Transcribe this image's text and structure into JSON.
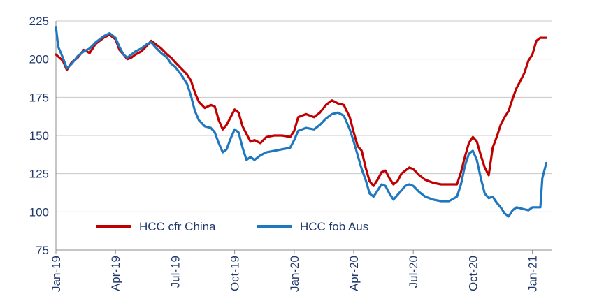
{
  "chart_data": {
    "type": "line",
    "title": "",
    "xlabel": "",
    "ylabel": "",
    "ylim": [
      75,
      225
    ],
    "yticks": [
      75,
      100,
      125,
      150,
      175,
      200,
      225
    ],
    "xticks": [
      "Jan-19",
      "Apr-19",
      "Jul-19",
      "Oct-19",
      "Jan-20",
      "Apr-20",
      "Jul-20",
      "Oct-20",
      "Jan-21"
    ],
    "x_range_months": [
      0,
      25
    ],
    "grid": "horizontal",
    "legend": "bottom-left",
    "series": [
      {
        "name": "HCC cfr China",
        "color": "#c00000",
        "points": [
          [
            0.0,
            203
          ],
          [
            0.35,
            199
          ],
          [
            0.55,
            193
          ],
          [
            0.8,
            198
          ],
          [
            1.1,
            201
          ],
          [
            1.4,
            206
          ],
          [
            1.7,
            204
          ],
          [
            2.0,
            210
          ],
          [
            2.4,
            214
          ],
          [
            2.7,
            216
          ],
          [
            3.0,
            213
          ],
          [
            3.2,
            206
          ],
          [
            3.4,
            203
          ],
          [
            3.6,
            200
          ],
          [
            3.8,
            201
          ],
          [
            4.0,
            203
          ],
          [
            4.3,
            205
          ],
          [
            4.6,
            209
          ],
          [
            4.8,
            212
          ],
          [
            5.0,
            210
          ],
          [
            5.3,
            207
          ],
          [
            5.6,
            203
          ],
          [
            5.8,
            201
          ],
          [
            6.0,
            198
          ],
          [
            6.3,
            194
          ],
          [
            6.6,
            190
          ],
          [
            6.8,
            186
          ],
          [
            7.0,
            178
          ],
          [
            7.2,
            172
          ],
          [
            7.5,
            168
          ],
          [
            7.8,
            170
          ],
          [
            8.0,
            169
          ],
          [
            8.2,
            160
          ],
          [
            8.4,
            154
          ],
          [
            8.6,
            157
          ],
          [
            8.8,
            162
          ],
          [
            9.0,
            167
          ],
          [
            9.2,
            165
          ],
          [
            9.4,
            156
          ],
          [
            9.6,
            151
          ],
          [
            9.8,
            146
          ],
          [
            10.0,
            147
          ],
          [
            10.3,
            145
          ],
          [
            10.6,
            149
          ],
          [
            11.0,
            150
          ],
          [
            11.4,
            150
          ],
          [
            11.8,
            149
          ],
          [
            12.0,
            153
          ],
          [
            12.2,
            162
          ],
          [
            12.6,
            164
          ],
          [
            13.0,
            162
          ],
          [
            13.3,
            165
          ],
          [
            13.6,
            170
          ],
          [
            13.9,
            173
          ],
          [
            14.2,
            171
          ],
          [
            14.5,
            170
          ],
          [
            14.8,
            162
          ],
          [
            15.0,
            152
          ],
          [
            15.2,
            143
          ],
          [
            15.4,
            140
          ],
          [
            15.6,
            129
          ],
          [
            15.8,
            120
          ],
          [
            16.0,
            117
          ],
          [
            16.2,
            121
          ],
          [
            16.4,
            126
          ],
          [
            16.6,
            127
          ],
          [
            16.8,
            122
          ],
          [
            17.0,
            118
          ],
          [
            17.2,
            120
          ],
          [
            17.4,
            125
          ],
          [
            17.6,
            127
          ],
          [
            17.8,
            129
          ],
          [
            18.0,
            128
          ],
          [
            18.3,
            124
          ],
          [
            18.6,
            121
          ],
          [
            19.0,
            119
          ],
          [
            19.4,
            118
          ],
          [
            19.8,
            118
          ],
          [
            20.2,
            118
          ],
          [
            20.4,
            126
          ],
          [
            20.6,
            136
          ],
          [
            20.8,
            145
          ],
          [
            21.0,
            149
          ],
          [
            21.2,
            146
          ],
          [
            21.4,
            137
          ],
          [
            21.6,
            129
          ],
          [
            21.8,
            124
          ],
          [
            22.0,
            142
          ],
          [
            22.2,
            149
          ],
          [
            22.4,
            157
          ],
          [
            22.6,
            162
          ],
          [
            22.8,
            166
          ],
          [
            23.0,
            174
          ],
          [
            23.2,
            181
          ],
          [
            23.4,
            186
          ],
          [
            23.6,
            191
          ],
          [
            23.8,
            199
          ],
          [
            24.0,
            203
          ],
          [
            24.2,
            212
          ],
          [
            24.4,
            214
          ],
          [
            24.7,
            214
          ]
        ]
      },
      {
        "name": "HCC fob Aus",
        "color": "#1f77c0",
        "points": [
          [
            0.0,
            221
          ],
          [
            0.12,
            208
          ],
          [
            0.35,
            201
          ],
          [
            0.55,
            194
          ],
          [
            0.8,
            197
          ],
          [
            1.1,
            202
          ],
          [
            1.4,
            205
          ],
          [
            1.7,
            207
          ],
          [
            2.0,
            211
          ],
          [
            2.4,
            215
          ],
          [
            2.7,
            217
          ],
          [
            3.0,
            214
          ],
          [
            3.2,
            208
          ],
          [
            3.4,
            203
          ],
          [
            3.6,
            201
          ],
          [
            3.8,
            203
          ],
          [
            4.0,
            205
          ],
          [
            4.3,
            207
          ],
          [
            4.6,
            210
          ],
          [
            4.8,
            211
          ],
          [
            5.0,
            208
          ],
          [
            5.3,
            204
          ],
          [
            5.6,
            201
          ],
          [
            5.8,
            197
          ],
          [
            6.0,
            195
          ],
          [
            6.3,
            190
          ],
          [
            6.6,
            184
          ],
          [
            6.8,
            176
          ],
          [
            7.0,
            166
          ],
          [
            7.2,
            160
          ],
          [
            7.5,
            156
          ],
          [
            7.8,
            155
          ],
          [
            8.0,
            152
          ],
          [
            8.2,
            145
          ],
          [
            8.4,
            139
          ],
          [
            8.6,
            141
          ],
          [
            8.8,
            148
          ],
          [
            9.0,
            154
          ],
          [
            9.2,
            152
          ],
          [
            9.4,
            142
          ],
          [
            9.6,
            134
          ],
          [
            9.8,
            136
          ],
          [
            10.0,
            134
          ],
          [
            10.3,
            137
          ],
          [
            10.6,
            139
          ],
          [
            11.0,
            140
          ],
          [
            11.4,
            141
          ],
          [
            11.8,
            142
          ],
          [
            12.0,
            147
          ],
          [
            12.2,
            153
          ],
          [
            12.6,
            155
          ],
          [
            13.0,
            154
          ],
          [
            13.3,
            157
          ],
          [
            13.6,
            161
          ],
          [
            13.9,
            164
          ],
          [
            14.2,
            165
          ],
          [
            14.5,
            163
          ],
          [
            14.8,
            154
          ],
          [
            15.0,
            146
          ],
          [
            15.2,
            137
          ],
          [
            15.4,
            128
          ],
          [
            15.6,
            121
          ],
          [
            15.8,
            112
          ],
          [
            16.0,
            110
          ],
          [
            16.2,
            114
          ],
          [
            16.4,
            118
          ],
          [
            16.6,
            117
          ],
          [
            16.8,
            112
          ],
          [
            17.0,
            108
          ],
          [
            17.2,
            111
          ],
          [
            17.4,
            114
          ],
          [
            17.6,
            117
          ],
          [
            17.8,
            118
          ],
          [
            18.0,
            117
          ],
          [
            18.3,
            113
          ],
          [
            18.6,
            110
          ],
          [
            19.0,
            108
          ],
          [
            19.4,
            107
          ],
          [
            19.8,
            107
          ],
          [
            20.2,
            110
          ],
          [
            20.4,
            118
          ],
          [
            20.6,
            130
          ],
          [
            20.8,
            138
          ],
          [
            21.0,
            140
          ],
          [
            21.2,
            134
          ],
          [
            21.4,
            122
          ],
          [
            21.6,
            112
          ],
          [
            21.8,
            109
          ],
          [
            22.0,
            110
          ],
          [
            22.2,
            106
          ],
          [
            22.4,
            103
          ],
          [
            22.6,
            99
          ],
          [
            22.8,
            97
          ],
          [
            23.0,
            101
          ],
          [
            23.2,
            103
          ],
          [
            23.5,
            102
          ],
          [
            23.8,
            101
          ],
          [
            24.0,
            103
          ],
          [
            24.2,
            103
          ],
          [
            24.4,
            103
          ],
          [
            24.5,
            122
          ],
          [
            24.7,
            132
          ]
        ]
      }
    ]
  }
}
